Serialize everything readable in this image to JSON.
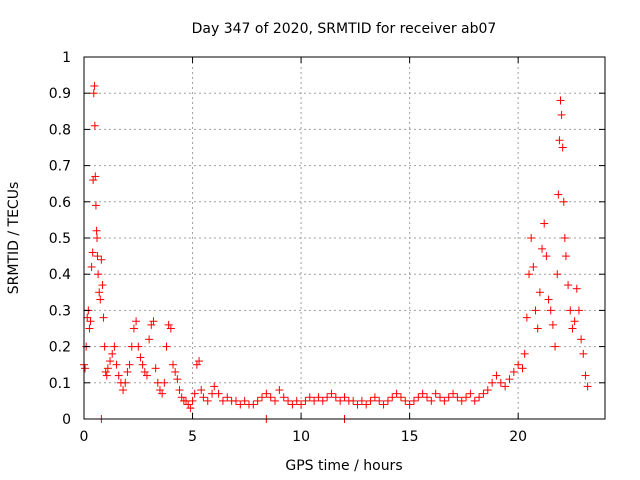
{
  "chart_data": {
    "type": "scatter",
    "title": "Day 347 of 2020, SRMTID for receiver ab07",
    "xlabel": "GPS time / hours",
    "ylabel": "SRMTID / TECUs",
    "xlim": [
      0,
      24
    ],
    "ylim": [
      0,
      1
    ],
    "grid": true,
    "marker": "+",
    "color": "#ff0000",
    "x_ticks": [
      0,
      5,
      10,
      15,
      20
    ],
    "x_tick_labels": [
      "0",
      "5",
      "10",
      "15",
      "20"
    ],
    "y_ticks": [
      0,
      0.1,
      0.2,
      0.3,
      0.4,
      0.5,
      0.6,
      0.7,
      0.8,
      0.9,
      1
    ],
    "y_tick_labels": [
      "0",
      "0.1",
      "0.2",
      "0.3",
      "0.4",
      "0.5",
      "0.6",
      "0.7",
      "0.8",
      "0.9",
      "1"
    ],
    "series": [
      {
        "name": "SRMTID",
        "points": [
          [
            0.0,
            0.15
          ],
          [
            0.05,
            0.14
          ],
          [
            0.1,
            0.2
          ],
          [
            0.15,
            0.28
          ],
          [
            0.2,
            0.3
          ],
          [
            0.25,
            0.25
          ],
          [
            0.3,
            0.27
          ],
          [
            0.35,
            0.42
          ],
          [
            0.4,
            0.46
          ],
          [
            0.42,
            0.66
          ],
          [
            0.45,
            0.9
          ],
          [
            0.48,
            0.92
          ],
          [
            0.5,
            0.81
          ],
          [
            0.52,
            0.67
          ],
          [
            0.55,
            0.59
          ],
          [
            0.58,
            0.52
          ],
          [
            0.6,
            0.5
          ],
          [
            0.62,
            0.45
          ],
          [
            0.65,
            0.4
          ],
          [
            0.7,
            0.35
          ],
          [
            0.75,
            0.33
          ],
          [
            0.8,
            0.44
          ],
          [
            0.85,
            0.37
          ],
          [
            0.9,
            0.28
          ],
          [
            0.95,
            0.2
          ],
          [
            1.0,
            0.13
          ],
          [
            1.05,
            0.12
          ],
          [
            1.1,
            0.14
          ],
          [
            1.2,
            0.16
          ],
          [
            1.3,
            0.18
          ],
          [
            1.4,
            0.2
          ],
          [
            1.5,
            0.15
          ],
          [
            1.6,
            0.12
          ],
          [
            1.7,
            0.1
          ],
          [
            1.8,
            0.08
          ],
          [
            1.9,
            0.1
          ],
          [
            2.0,
            0.13
          ],
          [
            2.1,
            0.15
          ],
          [
            2.2,
            0.2
          ],
          [
            2.3,
            0.25
          ],
          [
            2.4,
            0.27
          ],
          [
            2.5,
            0.2
          ],
          [
            2.6,
            0.17
          ],
          [
            2.7,
            0.15
          ],
          [
            2.8,
            0.13
          ],
          [
            2.9,
            0.12
          ],
          [
            3.0,
            0.22
          ],
          [
            3.1,
            0.26
          ],
          [
            3.2,
            0.27
          ],
          [
            3.3,
            0.14
          ],
          [
            3.4,
            0.1
          ],
          [
            3.5,
            0.08
          ],
          [
            3.6,
            0.07
          ],
          [
            3.7,
            0.1
          ],
          [
            3.8,
            0.2
          ],
          [
            3.9,
            0.26
          ],
          [
            4.0,
            0.25
          ],
          [
            4.1,
            0.15
          ],
          [
            4.2,
            0.13
          ],
          [
            4.3,
            0.11
          ],
          [
            4.4,
            0.08
          ],
          [
            4.5,
            0.06
          ],
          [
            4.6,
            0.05
          ],
          [
            4.7,
            0.05
          ],
          [
            4.8,
            0.04
          ],
          [
            4.9,
            0.03
          ],
          [
            5.0,
            0.05
          ],
          [
            5.1,
            0.07
          ],
          [
            5.2,
            0.15
          ],
          [
            5.3,
            0.16
          ],
          [
            5.4,
            0.08
          ],
          [
            5.5,
            0.06
          ],
          [
            5.7,
            0.05
          ],
          [
            5.9,
            0.07
          ],
          [
            6.0,
            0.09
          ],
          [
            6.2,
            0.07
          ],
          [
            6.4,
            0.05
          ],
          [
            6.6,
            0.06
          ],
          [
            6.8,
            0.05
          ],
          [
            7.0,
            0.05
          ],
          [
            7.2,
            0.04
          ],
          [
            7.4,
            0.05
          ],
          [
            7.6,
            0.04
          ],
          [
            7.8,
            0.04
          ],
          [
            8.0,
            0.05
          ],
          [
            8.2,
            0.06
          ],
          [
            8.4,
            0.07
          ],
          [
            8.6,
            0.06
          ],
          [
            8.8,
            0.05
          ],
          [
            9.0,
            0.08
          ],
          [
            9.2,
            0.06
          ],
          [
            9.4,
            0.05
          ],
          [
            9.6,
            0.04
          ],
          [
            9.8,
            0.05
          ],
          [
            10.0,
            0.04
          ],
          [
            10.2,
            0.05
          ],
          [
            10.4,
            0.06
          ],
          [
            10.6,
            0.05
          ],
          [
            10.8,
            0.06
          ],
          [
            11.0,
            0.05
          ],
          [
            11.2,
            0.06
          ],
          [
            11.4,
            0.07
          ],
          [
            11.6,
            0.06
          ],
          [
            11.8,
            0.05
          ],
          [
            12.0,
            0.06
          ],
          [
            12.2,
            0.05
          ],
          [
            12.4,
            0.05
          ],
          [
            12.6,
            0.04
          ],
          [
            12.8,
            0.05
          ],
          [
            13.0,
            0.04
          ],
          [
            13.2,
            0.05
          ],
          [
            13.4,
            0.06
          ],
          [
            13.6,
            0.05
          ],
          [
            13.8,
            0.04
          ],
          [
            14.0,
            0.05
          ],
          [
            14.2,
            0.06
          ],
          [
            14.4,
            0.07
          ],
          [
            14.6,
            0.06
          ],
          [
            14.8,
            0.05
          ],
          [
            15.0,
            0.04
          ],
          [
            15.2,
            0.05
          ],
          [
            15.4,
            0.06
          ],
          [
            15.6,
            0.07
          ],
          [
            15.8,
            0.06
          ],
          [
            16.0,
            0.05
          ],
          [
            16.2,
            0.07
          ],
          [
            16.4,
            0.06
          ],
          [
            16.6,
            0.05
          ],
          [
            16.8,
            0.06
          ],
          [
            17.0,
            0.07
          ],
          [
            17.2,
            0.06
          ],
          [
            17.4,
            0.05
          ],
          [
            17.6,
            0.06
          ],
          [
            17.8,
            0.07
          ],
          [
            18.0,
            0.05
          ],
          [
            18.2,
            0.06
          ],
          [
            18.4,
            0.07
          ],
          [
            18.6,
            0.08
          ],
          [
            18.8,
            0.1
          ],
          [
            19.0,
            0.12
          ],
          [
            19.2,
            0.1
          ],
          [
            19.4,
            0.09
          ],
          [
            19.6,
            0.11
          ],
          [
            19.8,
            0.13
          ],
          [
            20.0,
            0.15
          ],
          [
            20.2,
            0.14
          ],
          [
            20.3,
            0.18
          ],
          [
            20.4,
            0.28
          ],
          [
            20.5,
            0.4
          ],
          [
            20.6,
            0.5
          ],
          [
            20.7,
            0.42
          ],
          [
            20.8,
            0.3
          ],
          [
            20.9,
            0.25
          ],
          [
            21.0,
            0.35
          ],
          [
            21.1,
            0.47
          ],
          [
            21.2,
            0.54
          ],
          [
            21.3,
            0.45
          ],
          [
            21.4,
            0.33
          ],
          [
            21.5,
            0.3
          ],
          [
            21.6,
            0.26
          ],
          [
            21.7,
            0.2
          ],
          [
            21.8,
            0.4
          ],
          [
            21.85,
            0.62
          ],
          [
            21.9,
            0.77
          ],
          [
            21.95,
            0.88
          ],
          [
            22.0,
            0.84
          ],
          [
            22.05,
            0.75
          ],
          [
            22.1,
            0.6
          ],
          [
            22.15,
            0.5
          ],
          [
            22.2,
            0.45
          ],
          [
            22.3,
            0.37
          ],
          [
            22.4,
            0.3
          ],
          [
            22.5,
            0.25
          ],
          [
            22.6,
            0.27
          ],
          [
            22.7,
            0.36
          ],
          [
            22.8,
            0.3
          ],
          [
            22.9,
            0.22
          ],
          [
            23.0,
            0.18
          ],
          [
            23.1,
            0.12
          ],
          [
            23.2,
            0.09
          ],
          [
            0.8,
            0.0
          ],
          [
            8.4,
            0.0
          ],
          [
            12.0,
            0.0
          ]
        ]
      }
    ]
  }
}
